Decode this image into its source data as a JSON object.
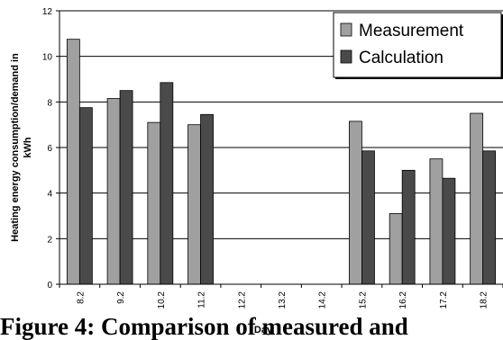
{
  "chart_data": {
    "type": "bar",
    "categories": [
      "8.2",
      "9.2",
      "10.2",
      "11.2",
      "12.2",
      "13.2",
      "14.2",
      "15.2",
      "16.2",
      "17.2",
      "18.2"
    ],
    "series": [
      {
        "name": "Measurement",
        "color": "#a0a0a0",
        "values": [
          10.75,
          8.15,
          7.1,
          7.0,
          null,
          null,
          null,
          7.15,
          3.1,
          5.5,
          7.5
        ]
      },
      {
        "name": "Calculation",
        "color": "#4a4a4a",
        "values": [
          7.75,
          8.5,
          8.85,
          7.45,
          null,
          null,
          null,
          5.85,
          5.0,
          4.65,
          5.85
        ]
      }
    ],
    "xlabel": "Day",
    "ylabel": "Heating energy consumption/demand in kWh",
    "ylim": [
      0,
      12
    ],
    "yticks": [
      0,
      2,
      4,
      6,
      8,
      10,
      12
    ],
    "grid": true,
    "legend_position": "top-right"
  },
  "caption": "Figure 4: Comparison of measured and"
}
